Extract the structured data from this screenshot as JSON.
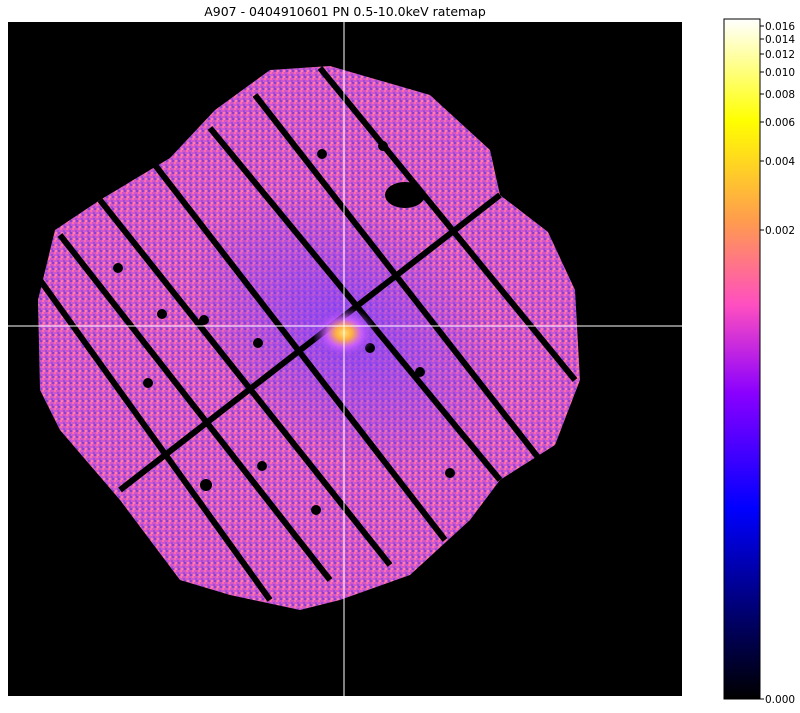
{
  "figure": {
    "title": "A907 - 0404910601 PN 0.5-10.0keV ratemap"
  },
  "colorbar": {
    "ticks": [
      "0.000",
      "0.002",
      "0.004",
      "0.006",
      "0.008",
      "0.010",
      "0.012",
      "0.014",
      "0.016"
    ],
    "colormap": [
      "#000000",
      "#0000ff",
      "#8a2be2",
      "#ff5fb0",
      "#ffa040",
      "#ffff00",
      "#ffffff"
    ]
  },
  "image": {
    "background": "#000000",
    "crosshair_color": "#ffffff",
    "detector_color": "#d65ad0",
    "core_color": "#ffd84a"
  }
}
